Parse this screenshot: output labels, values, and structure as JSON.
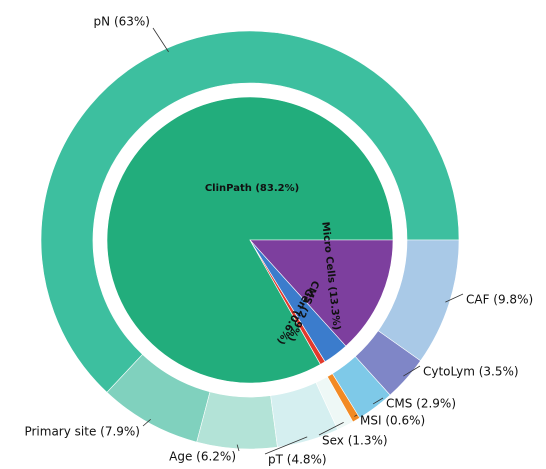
{
  "chart_data": {
    "type": "nested-pie",
    "inner": {
      "categories": [
        "ClinPath (83.2%)",
        "Gen (0.6%)",
        "CMS (2.9%)",
        "Micro Cells (13.3%)"
      ],
      "values": [
        83.2,
        0.6,
        2.9,
        13.3
      ],
      "colors": [
        "#22ad7c",
        "#e23a2c",
        "#3b7ccc",
        "#7d3f9e"
      ]
    },
    "outer": {
      "categories": [
        "pN (63%)",
        "Primary site (7.9%)",
        "Age (6.2%)",
        "pT (4.8%)",
        "Sex (1.3%)",
        "MSI (0.6%)",
        "CMS (2.9%)",
        "CytoLym (3.5%)",
        "CAF (9.8%)"
      ],
      "values": [
        63,
        7.9,
        6.2,
        4.8,
        1.3,
        0.6,
        2.9,
        3.5,
        9.8
      ],
      "colors": [
        "#3dbf9f",
        "#80d1be",
        "#b3e3d7",
        "#d5eff0",
        "#eef8f6",
        "#f28a24",
        "#7ec9e8",
        "#7f86c7",
        "#a9c9e7"
      ]
    }
  }
}
